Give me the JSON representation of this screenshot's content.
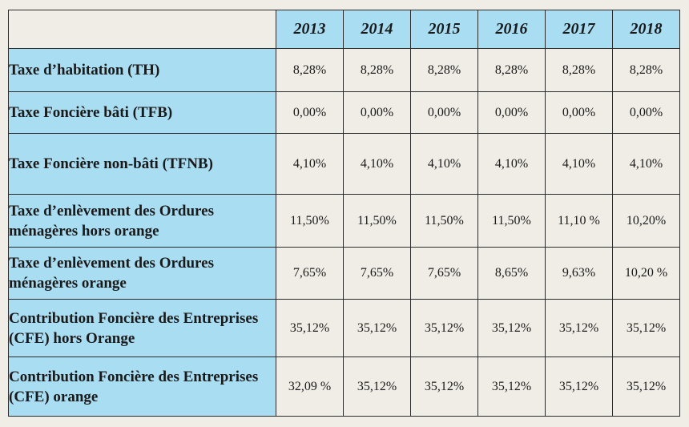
{
  "table": {
    "years": [
      "2013",
      "2014",
      "2015",
      "2016",
      "2017",
      "2018"
    ],
    "rows": [
      {
        "label": "Taxe d’habitation (TH)",
        "values": [
          "8,28%",
          "8,28%",
          "8,28%",
          "8,28%",
          "8,28%",
          "8,28%"
        ]
      },
      {
        "label": "Taxe Foncière bâti (TFB)",
        "values": [
          "0,00%",
          "0,00%",
          "0,00%",
          "0,00%",
          "0,00%",
          "0,00%"
        ]
      },
      {
        "label": "Taxe Foncière non-bâti (TFNB)",
        "values": [
          "4,10%",
          "4,10%",
          "4,10%",
          "4,10%",
          "4,10%",
          "4,10%"
        ]
      },
      {
        "label": "Taxe d’enlèvement des Ordures ménagères hors orange",
        "values": [
          "11,50%",
          "11,50%",
          "11,50%",
          "11,50%",
          "11,10 %",
          "10,20%"
        ]
      },
      {
        "label": "Taxe d’enlèvement des Ordures ménagères orange",
        "values": [
          "7,65%",
          "7,65%",
          "7,65%",
          "8,65%",
          "9,63%",
          "10,20 %"
        ]
      },
      {
        "label": "Contribution Foncière des Entreprises (CFE) hors Orange",
        "values": [
          "35,12%",
          "35,12%",
          "35,12%",
          "35,12%",
          "35,12%",
          "35,12%"
        ]
      },
      {
        "label": "Contribution Foncière des Entreprises (CFE) orange",
        "values": [
          "32,09 %",
          "35,12%",
          "35,12%",
          "35,12%",
          "35,12%",
          "35,12%"
        ]
      }
    ]
  }
}
